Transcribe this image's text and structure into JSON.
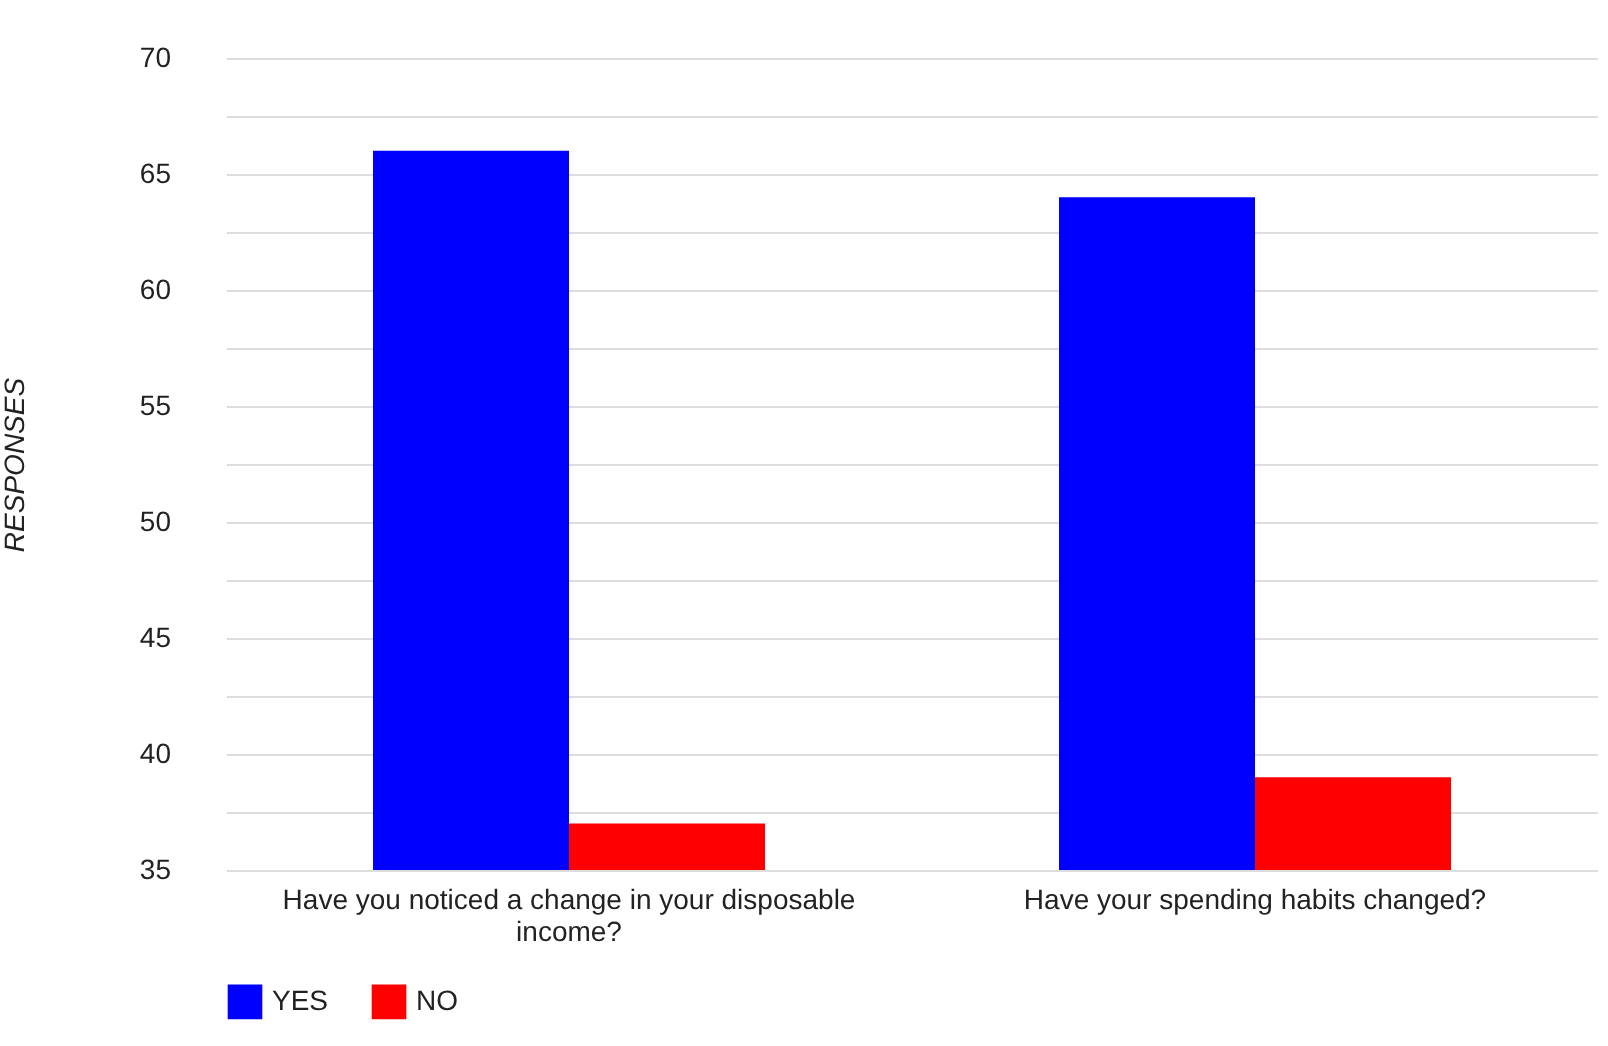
{
  "chart_data": {
    "type": "bar",
    "ylabel": "RESPONSES",
    "categories": [
      "Have you noticed a change in your disposable income?",
      "Have your spending habits changed?"
    ],
    "series": [
      {
        "name": "YES",
        "color": "#0000ff",
        "values": [
          66,
          64
        ]
      },
      {
        "name": "NO",
        "color": "#ff0000",
        "values": [
          37,
          39
        ]
      }
    ],
    "ylim": [
      35,
      70
    ],
    "yticks": [
      35,
      {
        "value": 37.5,
        "label": null
      },
      40,
      {
        "value": 42.5,
        "label": null
      },
      45,
      {
        "value": 47.5,
        "label": null
      },
      50,
      {
        "value": 52.5,
        "label": null
      },
      55,
      {
        "value": 57.5,
        "label": null
      },
      60,
      {
        "value": 62.5,
        "label": null
      },
      65,
      {
        "value": 67.5,
        "label": null
      },
      70
    ],
    "grid": true,
    "legend": "bottom"
  }
}
